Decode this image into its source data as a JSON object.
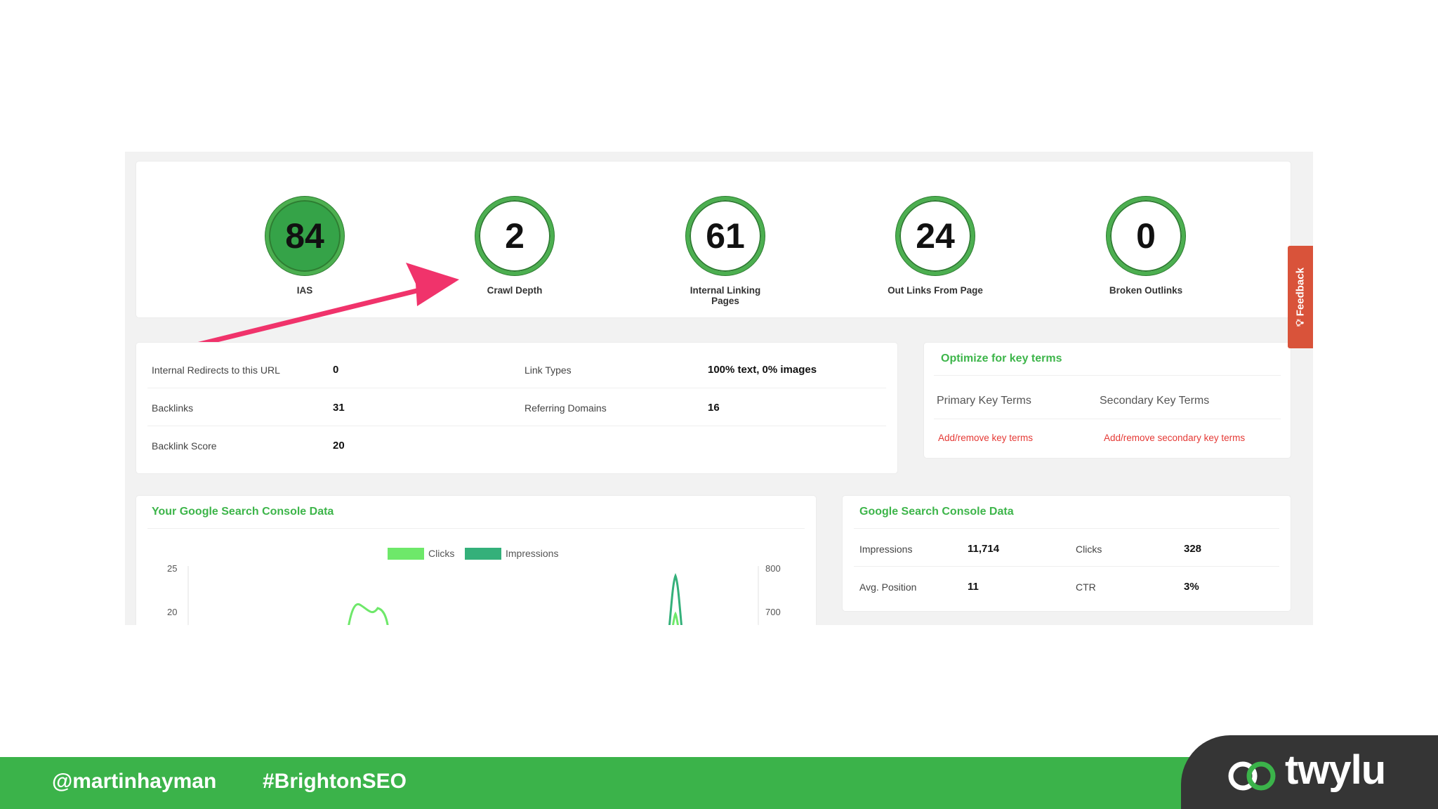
{
  "metrics": [
    {
      "value": "84",
      "label": "IAS",
      "filled": true
    },
    {
      "value": "2",
      "label": "Crawl Depth",
      "filled": false
    },
    {
      "value": "61",
      "label": "Internal Linking Pages",
      "filled": false
    },
    {
      "value": "24",
      "label": "Out Links From Page",
      "filled": false
    },
    {
      "value": "0",
      "label": "Broken Outlinks",
      "filled": false
    }
  ],
  "link_info": {
    "internal_redirects_label": "Internal Redirects to this URL",
    "internal_redirects_value": "0",
    "link_types_label": "Link Types",
    "link_types_value": "100% text, 0% images",
    "backlinks_label": "Backlinks",
    "backlinks_value": "31",
    "referring_domains_label": "Referring Domains",
    "referring_domains_value": "16",
    "backlink_score_label": "Backlink Score",
    "backlink_score_value": "20"
  },
  "key_terms": {
    "title": "Optimize for key terms",
    "primary_label": "Primary Key Terms",
    "secondary_label": "Secondary Key Terms",
    "primary_link": "Add/remove key terms",
    "secondary_link": "Add/remove secondary key terms"
  },
  "feedback_label": "Feedback",
  "gsc_chart_card": {
    "title": "Your Google Search Console Data",
    "legend_clicks": "Clicks",
    "legend_impressions": "Impressions",
    "left_ticks": [
      "25",
      "20"
    ],
    "right_ticks": [
      "800",
      "700"
    ]
  },
  "gsc_data_card": {
    "title": "Google Search Console Data",
    "impressions_label": "Impressions",
    "impressions_value": "11,714",
    "clicks_label": "Clicks",
    "clicks_value": "328",
    "avg_position_label": "Avg. Position",
    "avg_position_value": "11",
    "ctr_label": "CTR",
    "ctr_value": "3%"
  },
  "footer": {
    "handle": "@martinhayman",
    "hashtag": "#BrightonSEO",
    "logo_text": "twylu"
  },
  "colors": {
    "brand_green": "#3bb34a",
    "ring_green": "#4caf50",
    "arrow_pink": "#f0336b",
    "link_red": "#e53935",
    "feedback_orange": "#d9533a",
    "clicks_series": "#6ee86a",
    "impressions_series": "#34b07a"
  }
}
